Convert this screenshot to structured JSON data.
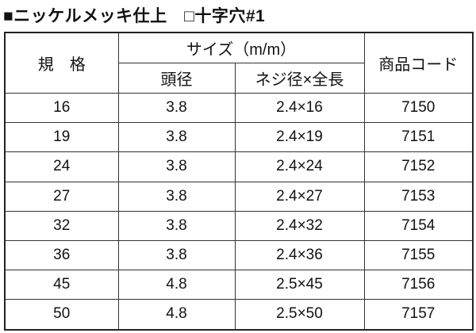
{
  "header": {
    "title": "■ニッケルメッキ仕上　□十字穴#1"
  },
  "table": {
    "columns": {
      "spec": "規　格",
      "size": "サイズ（m/m）",
      "head": "頭径",
      "thread": "ネジ径×全長",
      "code": "商品コード"
    },
    "rows": [
      [
        "16",
        "3.8",
        "2.4×16",
        "7150"
      ],
      [
        "19",
        "3.8",
        "2.4×19",
        "7151"
      ],
      [
        "24",
        "3.8",
        "2.4×24",
        "7152"
      ],
      [
        "27",
        "3.8",
        "2.4×27",
        "7153"
      ],
      [
        "32",
        "3.8",
        "2.4×32",
        "7154"
      ],
      [
        "36",
        "3.8",
        "2.4×36",
        "7155"
      ],
      [
        "45",
        "4.8",
        "2.5×45",
        "7156"
      ],
      [
        "50",
        "4.8",
        "2.5×50",
        "7157"
      ]
    ]
  }
}
